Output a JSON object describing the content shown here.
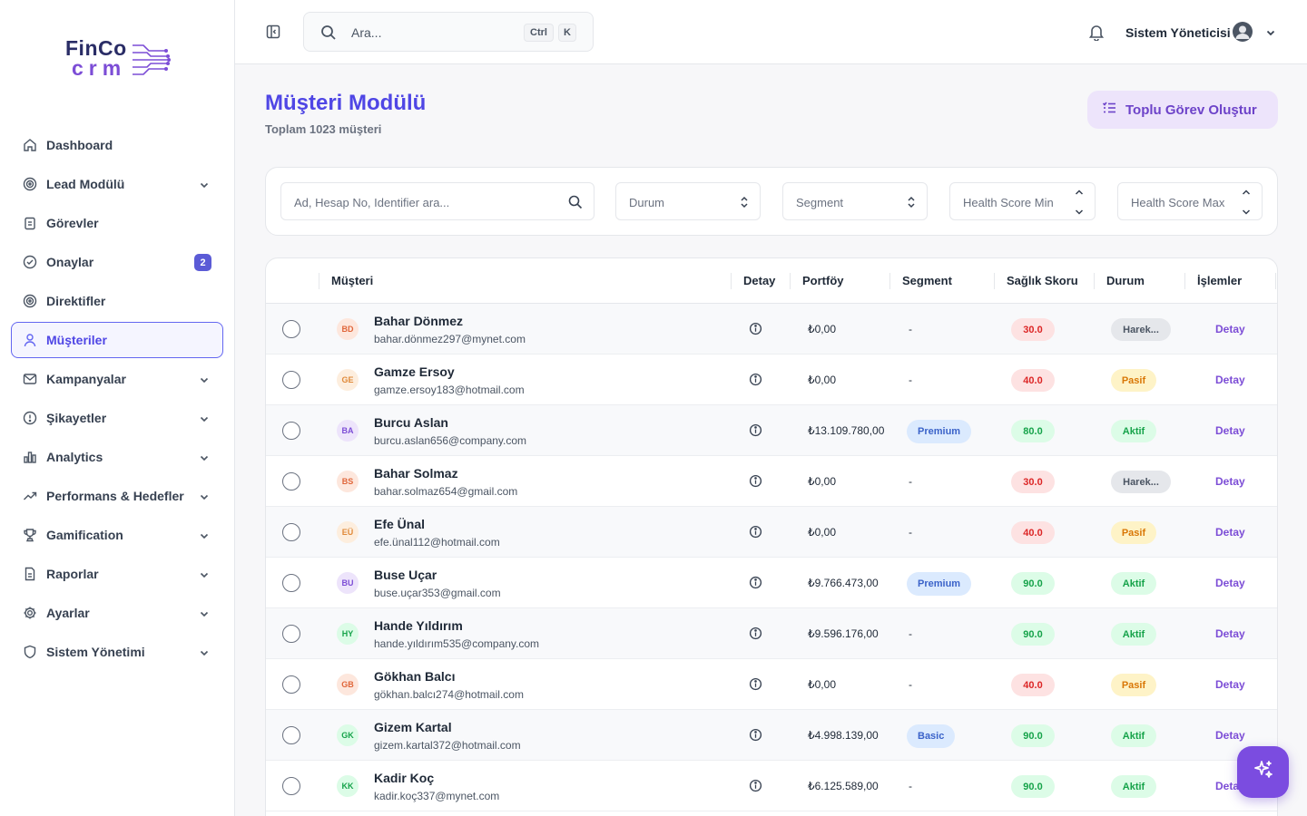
{
  "brand": {
    "line1": "FinCo",
    "line2": "crm"
  },
  "sidebar": {
    "items": [
      {
        "label": "Dashboard",
        "icon": "home-icon",
        "has_chevron": false
      },
      {
        "label": "Lead Modülü",
        "icon": "target-icon",
        "has_chevron": true
      },
      {
        "label": "Görevler",
        "icon": "clipboard-icon",
        "has_chevron": false
      },
      {
        "label": "Onaylar",
        "icon": "check-circle-icon",
        "has_chevron": false,
        "badge": "2"
      },
      {
        "label": "Direktifler",
        "icon": "target-icon",
        "has_chevron": false
      },
      {
        "label": "Müşteriler",
        "icon": "user-icon",
        "has_chevron": false,
        "active": true
      },
      {
        "label": "Kampanyalar",
        "icon": "mail-icon",
        "has_chevron": true
      },
      {
        "label": "Şikayetler",
        "icon": "alert-circle-icon",
        "has_chevron": true
      },
      {
        "label": "Analytics",
        "icon": "bar-chart-icon",
        "has_chevron": true
      },
      {
        "label": "Performans & Hedefler",
        "icon": "trending-up-icon",
        "has_chevron": true
      },
      {
        "label": "Gamification",
        "icon": "trophy-icon",
        "has_chevron": true
      },
      {
        "label": "Raporlar",
        "icon": "file-icon",
        "has_chevron": true
      },
      {
        "label": "Ayarlar",
        "icon": "gear-icon",
        "has_chevron": true
      },
      {
        "label": "Sistem Yönetimi",
        "icon": "shield-icon",
        "has_chevron": true
      }
    ]
  },
  "topbar": {
    "search_placeholder": "Ara...",
    "shortcut_key1": "Ctrl",
    "shortcut_key2": "K",
    "user_name": "Sistem Yöneticisi"
  },
  "main": {
    "title": "Müşteri Modülü",
    "subtitle": "Toplam 1023 müşteri",
    "bulk_button_label": "Toplu Görev Oluştur"
  },
  "filters": {
    "search_placeholder": "Ad, Hesap No, Identifier ara...",
    "status_placeholder": "Durum",
    "segment_placeholder": "Segment",
    "health_min_placeholder": "Health Score Min",
    "health_max_placeholder": "Health Score Max"
  },
  "table": {
    "headers": {
      "customer": "Müşteri",
      "detail": "Detay",
      "portfolio": "Portföy",
      "segment": "Segment",
      "health": "Sağlık Skoru",
      "status": "Durum",
      "actions": "İşlemler"
    },
    "action_label": "Detay",
    "rows": [
      {
        "initials": "BD",
        "name": "Bahar Dönmez",
        "email": "bahar.dönmez297@mynet.com",
        "portfolio": "₺0,00",
        "segment": "-",
        "score": "30.0",
        "status": "Harek..."
      },
      {
        "initials": "GE",
        "name": "Gamze Ersoy",
        "email": "gamze.ersoy183@hotmail.com",
        "portfolio": "₺0,00",
        "segment": "-",
        "score": "40.0",
        "status": "Pasif"
      },
      {
        "initials": "BA",
        "name": "Burcu Aslan",
        "email": "burcu.aslan656@company.com",
        "portfolio": "₺13.109.780,00",
        "segment": "Premium",
        "score": "80.0",
        "status": "Aktif"
      },
      {
        "initials": "BS",
        "name": "Bahar Solmaz",
        "email": "bahar.solmaz654@gmail.com",
        "portfolio": "₺0,00",
        "segment": "-",
        "score": "30.0",
        "status": "Harek..."
      },
      {
        "initials": "EÜ",
        "name": "Efe Ünal",
        "email": "efe.ünal112@hotmail.com",
        "portfolio": "₺0,00",
        "segment": "-",
        "score": "40.0",
        "status": "Pasif"
      },
      {
        "initials": "BU",
        "name": "Buse Uçar",
        "email": "buse.uçar353@gmail.com",
        "portfolio": "₺9.766.473,00",
        "segment": "Premium",
        "score": "90.0",
        "status": "Aktif"
      },
      {
        "initials": "HY",
        "name": "Hande Yıldırım",
        "email": "hande.yıldırım535@company.com",
        "portfolio": "₺9.596.176,00",
        "segment": "-",
        "score": "90.0",
        "status": "Aktif"
      },
      {
        "initials": "GB",
        "name": "Gökhan Balcı",
        "email": "gökhan.balcı274@hotmail.com",
        "portfolio": "₺0,00",
        "segment": "-",
        "score": "40.0",
        "status": "Pasif"
      },
      {
        "initials": "GK",
        "name": "Gizem Kartal",
        "email": "gizem.kartal372@hotmail.com",
        "portfolio": "₺4.998.139,00",
        "segment": "Basic",
        "score": "90.0",
        "status": "Aktif"
      },
      {
        "initials": "KK",
        "name": "Kadir Koç",
        "email": "kadir.koç337@mynet.com",
        "portfolio": "₺6.125.589,00",
        "segment": "-",
        "score": "90.0",
        "status": "Aktif"
      }
    ]
  },
  "colors": {
    "accent": "#4f46e5",
    "brand_purple": "#7c4dd6",
    "score_low_bg": "#fde2e2",
    "score_low_fg": "#dc2626",
    "score_high_bg": "#dcfce7",
    "score_high_fg": "#16a34a",
    "status_active_bg": "#dcfce7",
    "status_active_fg": "#16a34a",
    "status_passive_bg": "#fef3c7",
    "status_passive_fg": "#d97706",
    "status_move_bg": "#e5e7eb",
    "status_move_fg": "#4b5563"
  }
}
